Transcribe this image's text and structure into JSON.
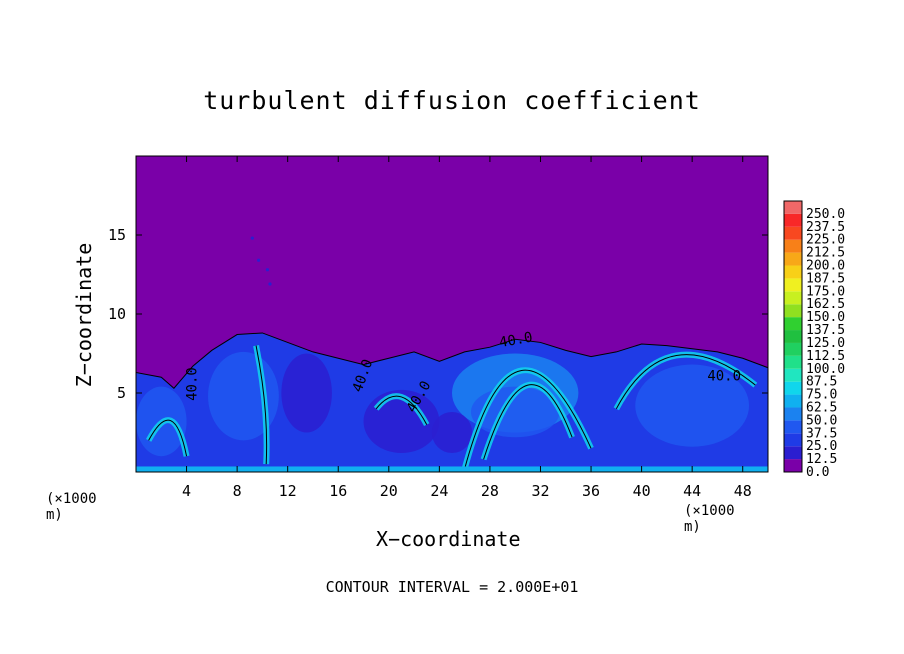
{
  "chart_data": {
    "type": "heatmap",
    "title": "turbulent diffusion coefficient",
    "xlabel": "X−coordinate",
    "ylabel": "Z−coordinate",
    "x_unit": "(×1000 m)",
    "z_unit": "(×1000 m)",
    "xlim": [
      0,
      50
    ],
    "ylim": [
      0,
      20
    ],
    "x_ticks": [
      4,
      8,
      12,
      16,
      20,
      24,
      28,
      32,
      36,
      40,
      44,
      48
    ],
    "y_ticks": [
      5,
      10,
      15
    ],
    "contour_interval_text": "CONTOUR INTERVAL = 2.000E+01",
    "contour_labels": [
      "40.0",
      "40.0",
      "40.0",
      "40.0",
      "40.0"
    ],
    "colorbar": {
      "levels": [
        "0.0",
        "12.5",
        "25.0",
        "37.5",
        "50.0",
        "62.5",
        "75.0",
        "87.5",
        "100.0",
        "112.5",
        "125.0",
        "137.5",
        "150.0",
        "162.5",
        "175.0",
        "187.5",
        "200.0",
        "212.5",
        "225.0",
        "237.5",
        "250.0"
      ],
      "colors": [
        "#7a00a8",
        "#2b1ed0",
        "#1f3be6",
        "#2058f0",
        "#1b82f0",
        "#10b0f0",
        "#10d6ec",
        "#20e6c0",
        "#20e08a",
        "#20d060",
        "#20c040",
        "#30d030",
        "#90e020",
        "#c8f020",
        "#f0f020",
        "#f8d018",
        "#f8a818",
        "#f88018",
        "#f84820",
        "#f82828",
        "#f06868"
      ]
    },
    "background_value": 0.0,
    "turbulent_layer_top_km": 8
  }
}
